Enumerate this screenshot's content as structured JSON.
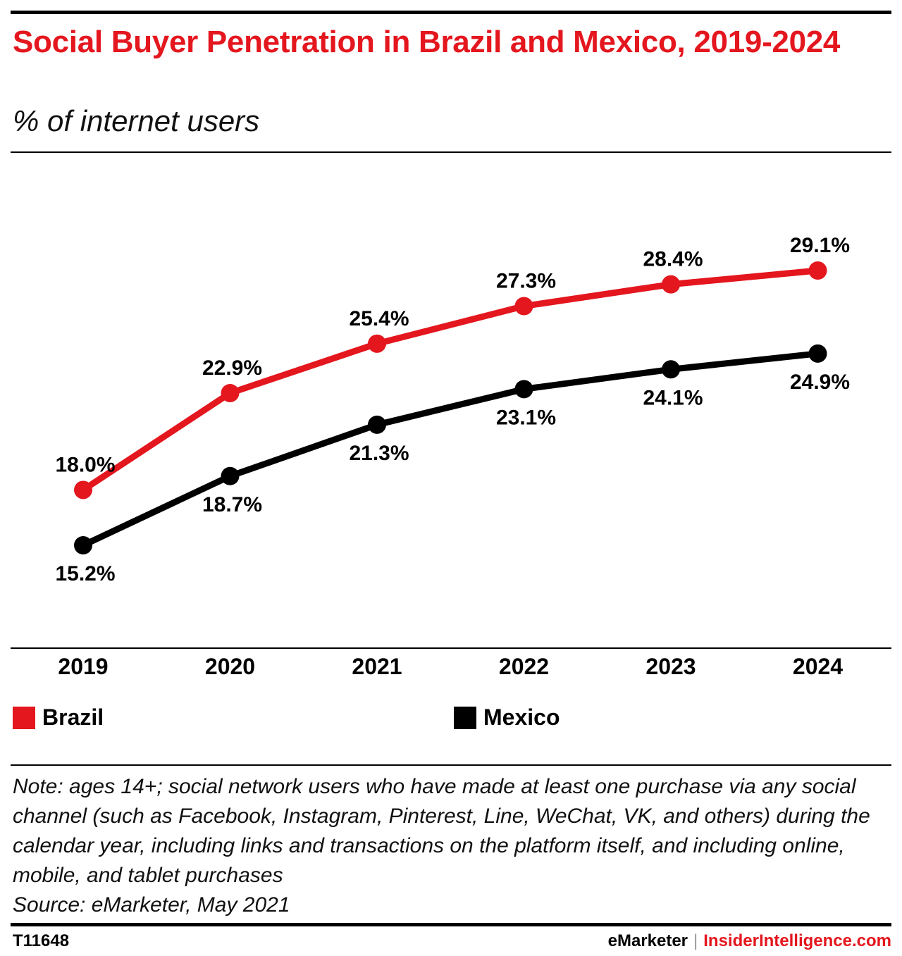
{
  "header": {
    "title": "Social Buyer Penetration in Brazil and Mexico, 2019-2024",
    "subtitle": "% of internet users"
  },
  "chart_data": {
    "type": "line",
    "title": "Social Buyer Penetration in Brazil and Mexico, 2019-2024",
    "subtitle": "% of internet users",
    "x": [
      "2019",
      "2020",
      "2021",
      "2022",
      "2023",
      "2024"
    ],
    "series": [
      {
        "name": "Brazil",
        "color": "#e4161e",
        "values": [
          18.0,
          22.9,
          25.4,
          27.3,
          28.4,
          29.1
        ],
        "labels": [
          "18.0%",
          "22.9%",
          "25.4%",
          "27.3%",
          "28.4%",
          "29.1%"
        ]
      },
      {
        "name": "Mexico",
        "color": "#000000",
        "values": [
          15.2,
          18.7,
          21.3,
          23.1,
          24.1,
          24.9
        ],
        "labels": [
          "15.2%",
          "18.7%",
          "21.3%",
          "23.1%",
          "24.1%",
          "24.9%"
        ]
      }
    ],
    "unit": "%",
    "grid": false,
    "legend_placement": "bottom"
  },
  "legend": {
    "brazil": "Brazil",
    "mexico": "Mexico"
  },
  "note": "Note: ages 14+; social network users who have made at least one purchase via any social channel (such as Facebook, Instagram, Pinterest, Line, WeChat, VK, and others) during the calendar year, including links and transactions on the platform itself, and including online, mobile, and tablet purchases",
  "source": "Source: eMarketer, May 2021",
  "footer": {
    "chart_id": "T11648",
    "brand_left": "eMarketer",
    "brand_sep": "|",
    "brand_right": "InsiderIntelligence.com"
  },
  "colors": {
    "accent": "#e4161e",
    "text": "#000000"
  }
}
